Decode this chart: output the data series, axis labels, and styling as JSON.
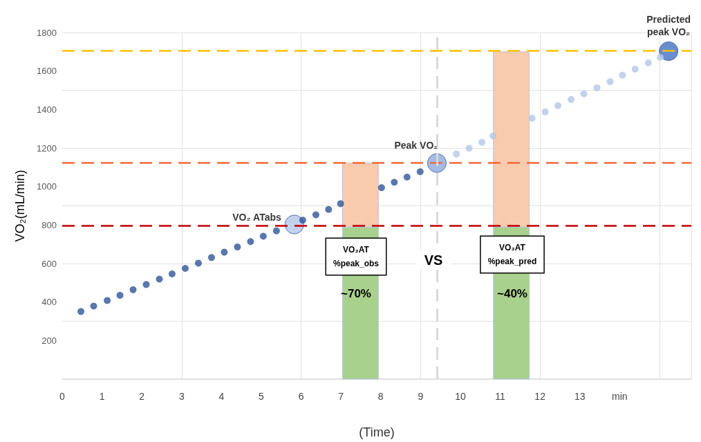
{
  "chart_data": {
    "type": "scatter",
    "xlabel": "(Time)",
    "ylabel": "VO₂(mL/min)",
    "marker": "circle",
    "grid": true,
    "legend": false,
    "stacked": true,
    "xlim": [
      0,
      15.8
    ],
    "xticks": [
      0,
      1,
      2,
      3,
      4,
      5,
      6,
      7,
      8,
      9,
      10,
      11,
      12,
      13,
      {
        "value": 14,
        "label": "min"
      }
    ],
    "ylim": [
      0,
      1800
    ],
    "yticks": [
      200,
      400,
      600,
      800,
      1000,
      1200,
      1400,
      1600,
      1800
    ],
    "series": [
      {
        "type": "bar",
        "color": "#a9d18e",
        "x": [
          7.49,
          11.28
        ],
        "values": [
          790,
          790
        ]
      },
      {
        "type": "bar",
        "color": "#f8cbad",
        "x": [
          7.49,
          11.28
        ],
        "values": [
          332,
          910
        ]
      },
      {
        "color": "#2f5597",
        "x": [
          0.47,
          0.79,
          1.13,
          1.45,
          1.78,
          2.11,
          2.44,
          2.76,
          3.09,
          3.42,
          3.75,
          4.07,
          4.4,
          4.73,
          5.05,
          5.38,
          6.04,
          6.37,
          6.69,
          6.99,
          8.02,
          8.34,
          8.66,
          8.99
        ],
        "values": [
          351,
          379,
          408,
          435,
          464,
          491,
          519,
          546,
          575,
          602,
          631,
          659,
          686,
          714,
          742,
          770,
          825,
          853,
          881,
          911,
          994,
          1022,
          1049,
          1077
        ]
      },
      {
        "color": "#b4c7e7",
        "x": [
          9.9,
          10.22,
          10.54,
          10.82,
          11.8,
          12.13,
          12.45,
          12.78,
          13.1,
          13.43,
          13.76,
          14.07,
          14.39,
          14.72,
          15.02
        ],
        "values": [
          1169,
          1199,
          1230,
          1263,
          1355,
          1388,
          1420,
          1452,
          1481,
          1513,
          1545,
          1578,
          1610,
          1642,
          1671
        ]
      },
      {
        "name": "VO₂ ATabs",
        "color": "#b4c7e7",
        "x": [
          5.83
        ],
        "values": [
          803
        ]
      },
      {
        "name": "Peak VO₂",
        "color": "#8faadc",
        "x": [
          9.41
        ],
        "values": [
          1122
        ]
      },
      {
        "name": "Predicted\npeak VO₂",
        "color": "#4472c4",
        "x": [
          15.23
        ],
        "values": [
          1703
        ]
      }
    ],
    "ref_lines": [
      {
        "axis": "y",
        "value": 1705,
        "color": "#ffc000",
        "line_style": "dashed"
      },
      {
        "axis": "y",
        "value": 1125,
        "color": "#f4683a",
        "line_style": "dashed"
      },
      {
        "axis": "y",
        "value": 795,
        "color": "#c00000",
        "line_style": "dashed"
      },
      {
        "axis": "x",
        "value": 9.41,
        "color": "#d9d9d9",
        "line_style": "dashed"
      }
    ],
    "annotations": [
      "VO₂AT\n%peak_obs",
      "~70%",
      "VS",
      "VO₂AT\n%peak_pred",
      "~40%"
    ]
  }
}
